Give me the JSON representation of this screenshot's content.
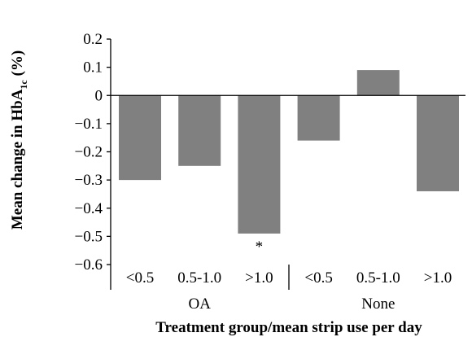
{
  "chart_data": {
    "type": "bar",
    "title": "",
    "xlabel": "Treatment group/mean strip use per day",
    "ylabel": {
      "main": "Mean change in HbA",
      "subscript": "1c",
      "suffix": " (%)"
    },
    "ylim": [
      -0.6,
      0.2
    ],
    "yticks": [
      0.2,
      0.1,
      0,
      -0.1,
      -0.2,
      -0.3,
      -0.4,
      -0.5,
      -0.6
    ],
    "ytick_labels": [
      "0.2",
      "0.1",
      "0",
      "−0.1",
      "−0.2",
      "−0.3",
      "−0.4",
      "−0.5",
      "−0.6"
    ],
    "categories": [
      "<0.5",
      "0.5-1.0",
      ">1.0",
      "<0.5",
      "0.5-1.0",
      ">1.0"
    ],
    "groups": [
      {
        "label": "OA",
        "indices": [
          0,
          1,
          2
        ]
      },
      {
        "label": "None",
        "indices": [
          3,
          4,
          5
        ]
      }
    ],
    "values": [
      -0.3,
      -0.25,
      -0.49,
      -0.16,
      0.09,
      -0.34
    ],
    "annotations": [
      {
        "index": 2,
        "text": "*"
      }
    ],
    "bar_color": "#808080",
    "grid": false,
    "legend": "none"
  }
}
